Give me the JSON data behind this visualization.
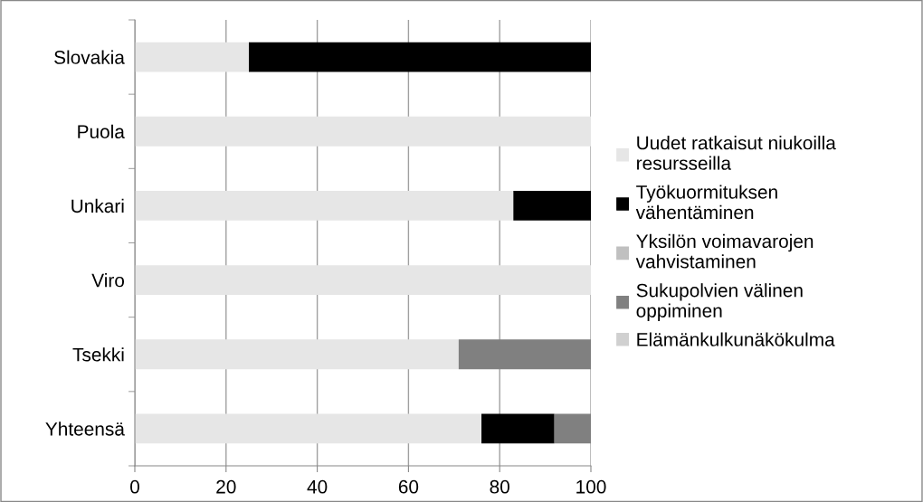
{
  "chart_data": {
    "type": "bar",
    "orientation": "horizontal",
    "stacked": true,
    "categories": [
      "Slovakia",
      "Puola",
      "Unkari",
      "Viro",
      "Tsekki",
      "Yhteensä"
    ],
    "series": [
      {
        "name": "Uudet ratkaisut niukoilla\nresursseilla",
        "color": "#e6e6e6",
        "values": [
          25,
          100,
          83,
          100,
          71,
          76
        ]
      },
      {
        "name": "Työkuormituksen\nvähentäminen",
        "color": "#000000",
        "values": [
          75,
          0,
          17,
          0,
          0,
          16
        ]
      },
      {
        "name": "Yksilön voimavarojen\nvahvistaminen",
        "color": "#c0c0c0",
        "values": [
          0,
          0,
          0,
          0,
          0,
          0
        ]
      },
      {
        "name": "Sukupolvien välinen\noppiminen",
        "color": "#808080",
        "values": [
          0,
          0,
          0,
          0,
          29,
          8
        ]
      },
      {
        "name": "Elämänkulkunäkökulma",
        "color": "#d0d0d0",
        "values": [
          0,
          0,
          0,
          0,
          0,
          0
        ]
      }
    ],
    "xlim": [
      0,
      100
    ],
    "xticks": [
      0,
      20,
      40,
      60,
      80,
      100
    ],
    "grid": "x",
    "legend": "right"
  }
}
